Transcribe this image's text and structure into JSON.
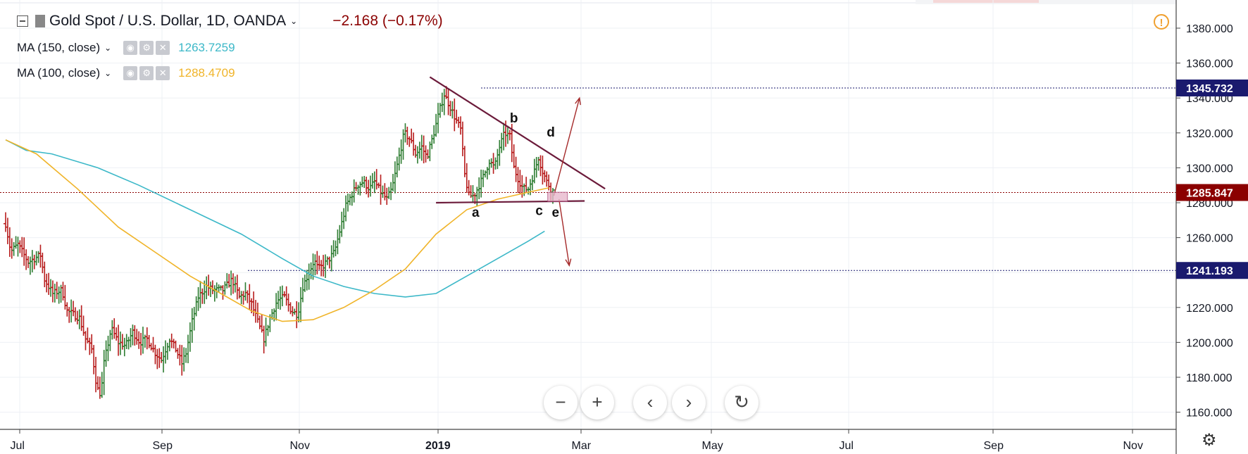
{
  "header": {
    "symbol": "Gold Spot / U.S. Dollar, 1D, OANDA",
    "change": "−2.168 (−0.17%)"
  },
  "indicators": [
    {
      "label": "MA (150, close)",
      "value": "1263.7259",
      "color": "#3cb8c8"
    },
    {
      "label": "MA (100, close)",
      "value": "1288.4709",
      "color": "#f0b429"
    }
  ],
  "colors": {
    "up": "#2e7d32",
    "down": "#b71c1c",
    "resistance": "#1a1a6e",
    "current": "#8b0000",
    "triangle": "#6b1a3a"
  },
  "icons": [
    "collapse-icon",
    "flag-icon",
    "warning-icon",
    "eye-icon",
    "gear-icon",
    "close-icon",
    "minus-icon",
    "plus-icon",
    "chevron-left-icon",
    "chevron-right-icon",
    "reset-icon",
    "settings-icon"
  ],
  "chart_data": {
    "type": "ohlc",
    "y_ticks": [
      "1380.000",
      "1360.000",
      "1340.000",
      "1320.000",
      "1300.000",
      "1280.000",
      "1260.000",
      "1240.000",
      "1220.000",
      "1200.000",
      "1180.000",
      "1160.000"
    ],
    "y_tick_values": [
      1380,
      1360,
      1340,
      1320,
      1300,
      1280,
      1260,
      1240,
      1220,
      1200,
      1180,
      1160
    ],
    "x_ticks": [
      "Jul",
      "Sep",
      "Nov",
      "2019",
      "Mar",
      "May",
      "Jul",
      "Sep",
      "Nov"
    ],
    "ylim": [
      1146,
      1390
    ],
    "price_markers": [
      {
        "label": "1345.732",
        "value": 1345.732,
        "kind": "resistance"
      },
      {
        "label": "1285.847",
        "value": 1285.847,
        "kind": "current"
      },
      {
        "label": "1241.193",
        "value": 1241.193,
        "kind": "support"
      }
    ],
    "wave_labels": [
      "a",
      "b",
      "c",
      "d",
      "e"
    ],
    "price_anchors": [
      {
        "t": 0,
        "p": 1268
      },
      {
        "t": 5,
        "p": 1252
      },
      {
        "t": 12,
        "p": 1256
      },
      {
        "t": 22,
        "p": 1246
      },
      {
        "t": 28,
        "p": 1248
      },
      {
        "t": 34,
        "p": 1250
      },
      {
        "t": 38,
        "p": 1236
      },
      {
        "t": 46,
        "p": 1228
      },
      {
        "t": 55,
        "p": 1230
      },
      {
        "t": 60,
        "p": 1218
      },
      {
        "t": 72,
        "p": 1214
      },
      {
        "t": 78,
        "p": 1202
      },
      {
        "t": 84,
        "p": 1196
      },
      {
        "t": 89,
        "p": 1174
      },
      {
        "t": 93,
        "p": 1170
      },
      {
        "t": 96,
        "p": 1188
      },
      {
        "t": 103,
        "p": 1208
      },
      {
        "t": 110,
        "p": 1200
      },
      {
        "t": 117,
        "p": 1198
      },
      {
        "t": 124,
        "p": 1206
      },
      {
        "t": 131,
        "p": 1200
      },
      {
        "t": 138,
        "p": 1202
      },
      {
        "t": 146,
        "p": 1194
      },
      {
        "t": 152,
        "p": 1190
      },
      {
        "t": 160,
        "p": 1202
      },
      {
        "t": 166,
        "p": 1196
      },
      {
        "t": 172,
        "p": 1188
      },
      {
        "t": 176,
        "p": 1194
      },
      {
        "t": 182,
        "p": 1212
      },
      {
        "t": 188,
        "p": 1226
      },
      {
        "t": 196,
        "p": 1232
      },
      {
        "t": 202,
        "p": 1230
      },
      {
        "t": 212,
        "p": 1230
      },
      {
        "t": 221,
        "p": 1236
      },
      {
        "t": 228,
        "p": 1226
      },
      {
        "t": 234,
        "p": 1228
      },
      {
        "t": 240,
        "p": 1222
      },
      {
        "t": 247,
        "p": 1210
      },
      {
        "t": 252,
        "p": 1202
      },
      {
        "t": 258,
        "p": 1214
      },
      {
        "t": 265,
        "p": 1224
      },
      {
        "t": 272,
        "p": 1226
      },
      {
        "t": 279,
        "p": 1218
      },
      {
        "t": 285,
        "p": 1216
      },
      {
        "t": 290,
        "p": 1232
      },
      {
        "t": 296,
        "p": 1240
      },
      {
        "t": 301,
        "p": 1247
      },
      {
        "t": 305,
        "p": 1242
      },
      {
        "t": 310,
        "p": 1244
      },
      {
        "t": 316,
        "p": 1248
      },
      {
        "t": 321,
        "p": 1252
      },
      {
        "t": 327,
        "p": 1266
      },
      {
        "t": 332,
        "p": 1278
      },
      {
        "t": 337,
        "p": 1284
      },
      {
        "t": 343,
        "p": 1290
      },
      {
        "t": 349,
        "p": 1292
      },
      {
        "t": 355,
        "p": 1288
      },
      {
        "t": 360,
        "p": 1292
      },
      {
        "t": 366,
        "p": 1286
      },
      {
        "t": 372,
        "p": 1282
      },
      {
        "t": 377,
        "p": 1288
      },
      {
        "t": 383,
        "p": 1304
      },
      {
        "t": 389,
        "p": 1320
      },
      {
        "t": 395,
        "p": 1316
      },
      {
        "t": 400,
        "p": 1308
      },
      {
        "t": 406,
        "p": 1312
      },
      {
        "t": 411,
        "p": 1306
      },
      {
        "t": 417,
        "p": 1318
      },
      {
        "t": 424,
        "p": 1334
      },
      {
        "t": 428,
        "p": 1342
      },
      {
        "t": 433,
        "p": 1336
      },
      {
        "t": 439,
        "p": 1328
      },
      {
        "t": 444,
        "p": 1322
      },
      {
        "t": 448,
        "p": 1296
      },
      {
        "t": 452,
        "p": 1284
      },
      {
        "t": 457,
        "p": 1284
      },
      {
        "t": 462,
        "p": 1290
      },
      {
        "t": 467,
        "p": 1296
      },
      {
        "t": 472,
        "p": 1304
      },
      {
        "t": 477,
        "p": 1300
      },
      {
        "t": 482,
        "p": 1312
      },
      {
        "t": 487,
        "p": 1320
      },
      {
        "t": 492,
        "p": 1318
      },
      {
        "t": 496,
        "p": 1300
      },
      {
        "t": 500,
        "p": 1294
      },
      {
        "t": 505,
        "p": 1288
      },
      {
        "t": 510,
        "p": 1288
      },
      {
        "t": 515,
        "p": 1296
      },
      {
        "t": 520,
        "p": 1306
      },
      {
        "t": 524,
        "p": 1298
      },
      {
        "t": 528,
        "p": 1292
      },
      {
        "t": 532,
        "p": 1288
      },
      {
        "t": 535,
        "p": 1286
      }
    ],
    "ma150": [
      [
        0,
        1316
      ],
      [
        20,
        1310
      ],
      [
        45,
        1308
      ],
      [
        90,
        1300
      ],
      [
        130,
        1290
      ],
      [
        180,
        1276
      ],
      [
        230,
        1262
      ],
      [
        270,
        1248
      ],
      [
        300,
        1238
      ],
      [
        330,
        1232
      ],
      [
        360,
        1228
      ],
      [
        390,
        1226
      ],
      [
        420,
        1228
      ],
      [
        450,
        1238
      ],
      [
        480,
        1248
      ],
      [
        510,
        1258
      ],
      [
        526,
        1263.7
      ]
    ],
    "ma100": [
      [
        0,
        1316
      ],
      [
        30,
        1308
      ],
      [
        70,
        1288
      ],
      [
        110,
        1266
      ],
      [
        150,
        1250
      ],
      [
        180,
        1238
      ],
      [
        210,
        1228
      ],
      [
        240,
        1218
      ],
      [
        270,
        1212
      ],
      [
        300,
        1213
      ],
      [
        330,
        1220
      ],
      [
        360,
        1230
      ],
      [
        390,
        1242
      ],
      [
        420,
        1262
      ],
      [
        450,
        1276
      ],
      [
        480,
        1282
      ],
      [
        510,
        1286
      ],
      [
        530,
        1288.5
      ]
    ],
    "triangle_upper": [
      [
        414,
        1352
      ],
      [
        585,
        1288
      ]
    ],
    "triangle_lower": [
      [
        420,
        1280
      ],
      [
        565,
        1281
      ]
    ],
    "arrow_up": [
      [
        535,
        1284
      ],
      [
        560,
        1340
      ]
    ],
    "arrow_down": [
      [
        540,
        1282
      ],
      [
        550,
        1244
      ]
    ]
  },
  "zoom_controls": {}
}
